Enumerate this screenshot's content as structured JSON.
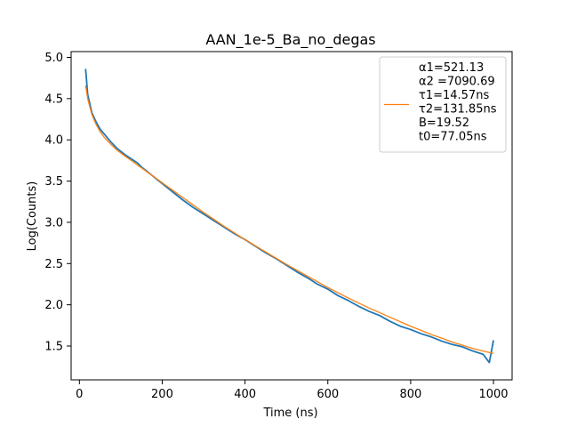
{
  "chart_data": {
    "type": "line",
    "title": "AAN_1e-5_Ba_no_degas",
    "xlabel": "Time (ns)",
    "ylabel": "Log(Counts)",
    "xlim": [
      -20,
      1045
    ],
    "ylim": [
      1.09,
      5.07
    ],
    "x_ticks": [
      0,
      200,
      400,
      600,
      800,
      1000
    ],
    "y_ticks": [
      1.5,
      2.0,
      2.5,
      3.0,
      3.5,
      4.0,
      4.5,
      5.0
    ],
    "x_tick_labels": [
      "0",
      "200",
      "400",
      "600",
      "800",
      "1000"
    ],
    "y_tick_labels": [
      "1.5",
      "2.0",
      "2.5",
      "3.0",
      "3.5",
      "4.0",
      "4.5",
      "5.0"
    ],
    "grid": false,
    "legend_position": "top-right",
    "series": [
      {
        "name": "",
        "role": "data",
        "color": "#1f77b4",
        "x": [
          15,
          20,
          25,
          30,
          40,
          50,
          60,
          75,
          90,
          100,
          110,
          125,
          140,
          150,
          160,
          175,
          190,
          200,
          225,
          250,
          275,
          300,
          325,
          350,
          375,
          400,
          425,
          450,
          475,
          500,
          525,
          550,
          575,
          600,
          625,
          650,
          675,
          700,
          725,
          750,
          775,
          800,
          825,
          850,
          875,
          900,
          925,
          950,
          975,
          990,
          1000
        ],
        "y": [
          4.86,
          4.55,
          4.44,
          4.33,
          4.22,
          4.13,
          4.07,
          3.98,
          3.9,
          3.86,
          3.82,
          3.77,
          3.72,
          3.67,
          3.63,
          3.57,
          3.51,
          3.47,
          3.37,
          3.27,
          3.18,
          3.1,
          3.02,
          2.94,
          2.86,
          2.79,
          2.71,
          2.63,
          2.56,
          2.48,
          2.4,
          2.33,
          2.25,
          2.19,
          2.11,
          2.05,
          1.98,
          1.92,
          1.87,
          1.8,
          1.74,
          1.7,
          1.65,
          1.61,
          1.56,
          1.52,
          1.49,
          1.44,
          1.4,
          1.3,
          1.57
        ]
      },
      {
        "name": "α1=521.13\nα2 =7090.69\nτ1=14.57ns\nτ2=131.85ns\nB=19.52\nt0=77.05ns",
        "role": "fit",
        "color": "#ff7f0e",
        "x": [
          15,
          20,
          25,
          30,
          40,
          50,
          60,
          75,
          90,
          100,
          125,
          150,
          175,
          200,
          250,
          300,
          350,
          400,
          450,
          500,
          550,
          600,
          650,
          700,
          750,
          800,
          850,
          900,
          950,
          1000
        ],
        "y": [
          4.66,
          4.5,
          4.4,
          4.31,
          4.19,
          4.1,
          4.03,
          3.95,
          3.88,
          3.84,
          3.75,
          3.66,
          3.57,
          3.48,
          3.3,
          3.12,
          2.95,
          2.79,
          2.64,
          2.49,
          2.35,
          2.21,
          2.08,
          1.96,
          1.85,
          1.74,
          1.64,
          1.55,
          1.47,
          1.41
        ]
      }
    ],
    "legend": {
      "label": "α1=521.13\nα2 =7090.69\nτ1=14.57ns\nτ2=131.85ns\nB=19.52\nt0=77.05ns"
    }
  }
}
